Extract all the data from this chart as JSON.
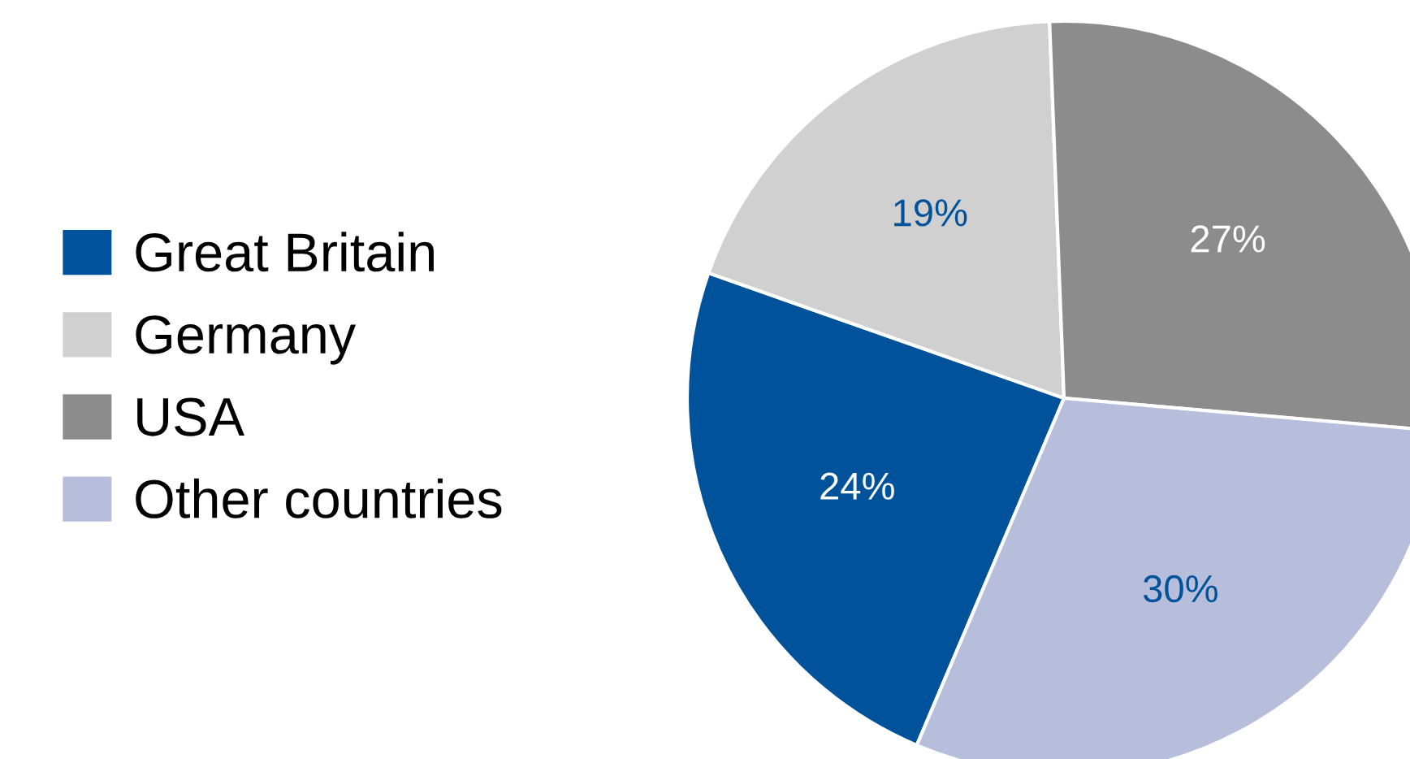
{
  "chart_data": {
    "type": "pie",
    "categories": [
      "Great Britain",
      "Germany",
      "USA",
      "Other countries"
    ],
    "values": [
      24,
      19,
      27,
      30
    ],
    "colors": [
      "#00529b",
      "#d0d0d0",
      "#8c8c8c",
      "#b7bedb"
    ],
    "value_labels": [
      "24%",
      "19%",
      "27%",
      "30%"
    ],
    "legend": "left"
  }
}
